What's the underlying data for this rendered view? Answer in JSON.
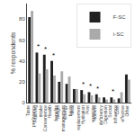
{
  "chart_data": {
    "type": "bar",
    "categories": [
      "Taste\npreference",
      "Fruit/veg\nintake",
      "Convenience",
      "Health\nbenefits",
      "Weight\nmanagement",
      "Energy\nboost",
      "Meal\nreplacement",
      "Hydration",
      "Post\nexercise",
      "Nutrient\ndeficiency",
      "Digestion",
      "Social\ninfluence",
      "Cost\neffective",
      "Other"
    ],
    "series": [
      {
        "name": "F-SC",
        "color": "#222222",
        "values": [
          82,
          48,
          46,
          40,
          20,
          18,
          13,
          12,
          10,
          8,
          5,
          5,
          4,
          27
        ]
      },
      {
        "name": "I-SC",
        "color": "#aaaaaa",
        "values": [
          88,
          28,
          32,
          26,
          30,
          25,
          13,
          8,
          7,
          5,
          3,
          3,
          10,
          22
        ]
      }
    ],
    "ylabel": "% respondents",
    "ylim": [
      0,
      95
    ],
    "yticks": [
      0,
      20,
      40,
      60,
      80
    ],
    "grid": false,
    "legend": "upper right",
    "annotations": [
      {
        "category": "Fruit/veg\nintake",
        "text": "*"
      },
      {
        "category": "Convenience",
        "text": "*"
      },
      {
        "category": "Health\nbenefits",
        "text": "*"
      },
      {
        "category": "Hydration",
        "text": "*"
      },
      {
        "category": "Post\nexercise",
        "text": "*"
      },
      {
        "category": "Nutrient\ndeficiency",
        "text": "*"
      },
      {
        "category": "Social\ninfluence",
        "text": "*"
      }
    ]
  }
}
